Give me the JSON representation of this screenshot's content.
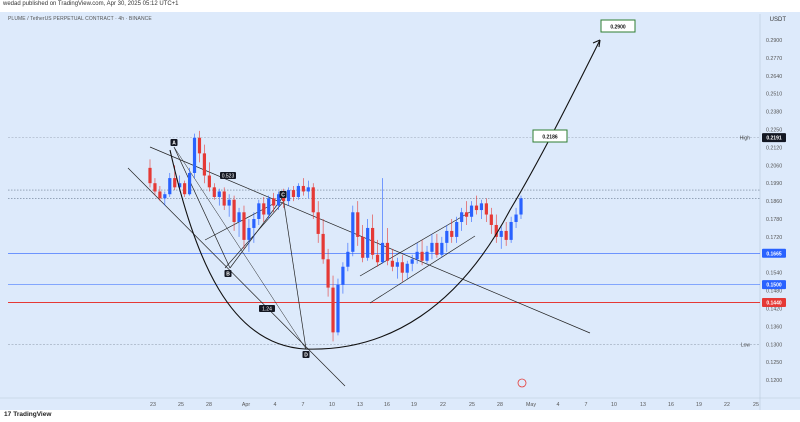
{
  "header": {
    "published_text": "wedad published on TradingView.com, Apr 30, 2025 05:12 UTC+1",
    "symbol_text": "PLUME / TetherUS PERPETUAL CONTRACT · 4h · BINANCE",
    "currency": "USDT"
  },
  "footer": {
    "brand_mark": "17",
    "brand": "TradingView"
  },
  "chart_data": {
    "type": "candlestick",
    "title": "",
    "currency": "USDT",
    "y_ticks": [
      "0.2900",
      "0.2770",
      "0.2640",
      "0.2510",
      "0.2380",
      "0.2250",
      "0.2120",
      "0.2060",
      "0.1990",
      "0.1860",
      "0.1780",
      "0.1720",
      "0.1660",
      "0.1540",
      "0.1480",
      "0.1420",
      "0.1360",
      "0.1300",
      "0.1250",
      "0.1200"
    ],
    "x_ticks": [
      "23",
      "25",
      "28",
      "Apr",
      "4",
      "7",
      "10",
      "13",
      "16",
      "19",
      "22",
      "25",
      "28",
      "May",
      "4",
      "7",
      "10",
      "13",
      "16",
      "19",
      "22",
      "25"
    ],
    "price_tags": [
      {
        "text": "0.2191",
        "color": "#131722",
        "level": 0.2191
      },
      {
        "text": "0.1665",
        "color": "#2962ff",
        "level": 0.1665
      },
      {
        "text": "0.1500",
        "color": "#2962ff",
        "level": 0.15
      },
      {
        "text": "0.1440",
        "color": "#e53935",
        "level": 0.144
      }
    ],
    "level_labels": [
      {
        "text": "High",
        "level": 0.2191
      },
      {
        "text": "Low",
        "level": 0.13
      }
    ],
    "targets": [
      {
        "text": "0.2900"
      },
      {
        "text": "0.2186"
      }
    ],
    "pattern_labels": [
      "A",
      "B",
      "C",
      "D"
    ],
    "ratio_labels": [
      "0.523",
      "1.24"
    ],
    "candles_ohlc": [
      [
        0.205,
        0.208,
        0.196,
        0.199
      ],
      [
        0.199,
        0.201,
        0.19,
        0.193
      ],
      [
        0.193,
        0.197,
        0.186,
        0.188
      ],
      [
        0.188,
        0.193,
        0.184,
        0.191
      ],
      [
        0.191,
        0.203,
        0.189,
        0.201
      ],
      [
        0.201,
        0.206,
        0.194,
        0.196
      ],
      [
        0.196,
        0.202,
        0.193,
        0.199
      ],
      [
        0.199,
        0.2,
        0.189,
        0.191
      ],
      [
        0.191,
        0.205,
        0.19,
        0.203
      ],
      [
        0.203,
        0.222,
        0.201,
        0.219
      ],
      [
        0.219,
        0.224,
        0.207,
        0.21
      ],
      [
        0.21,
        0.214,
        0.199,
        0.202
      ],
      [
        0.202,
        0.207,
        0.193,
        0.196
      ],
      [
        0.196,
        0.199,
        0.187,
        0.189
      ],
      [
        0.189,
        0.195,
        0.184,
        0.193
      ],
      [
        0.193,
        0.196,
        0.182,
        0.184
      ],
      [
        0.184,
        0.191,
        0.179,
        0.187
      ],
      [
        0.187,
        0.19,
        0.174,
        0.177
      ],
      [
        0.177,
        0.183,
        0.172,
        0.181
      ],
      [
        0.181,
        0.184,
        0.168,
        0.171
      ],
      [
        0.171,
        0.178,
        0.167,
        0.175
      ],
      [
        0.175,
        0.181,
        0.17,
        0.178
      ],
      [
        0.178,
        0.187,
        0.176,
        0.185
      ],
      [
        0.185,
        0.189,
        0.177,
        0.18
      ],
      [
        0.18,
        0.19,
        0.178,
        0.188
      ],
      [
        0.188,
        0.192,
        0.181,
        0.184
      ],
      [
        0.184,
        0.193,
        0.182,
        0.191
      ],
      [
        0.191,
        0.195,
        0.183,
        0.186
      ],
      [
        0.186,
        0.196,
        0.184,
        0.194
      ],
      [
        0.194,
        0.197,
        0.186,
        0.189
      ],
      [
        0.189,
        0.199,
        0.187,
        0.197
      ],
      [
        0.197,
        0.201,
        0.19,
        0.193
      ],
      [
        0.193,
        0.2,
        0.188,
        0.196
      ],
      [
        0.196,
        0.199,
        0.178,
        0.181
      ],
      [
        0.181,
        0.186,
        0.17,
        0.173
      ],
      [
        0.173,
        0.178,
        0.16,
        0.163
      ],
      [
        0.163,
        0.168,
        0.146,
        0.149
      ],
      [
        0.149,
        0.153,
        0.131,
        0.134
      ],
      [
        0.134,
        0.152,
        0.133,
        0.15
      ],
      [
        0.15,
        0.161,
        0.147,
        0.158
      ],
      [
        0.158,
        0.17,
        0.155,
        0.167
      ],
      [
        0.167,
        0.184,
        0.165,
        0.181
      ],
      [
        0.181,
        0.186,
        0.169,
        0.172
      ],
      [
        0.172,
        0.176,
        0.161,
        0.164
      ],
      [
        0.164,
        0.178,
        0.162,
        0.175
      ],
      [
        0.175,
        0.18,
        0.163,
        0.166
      ],
      [
        0.166,
        0.171,
        0.158,
        0.161
      ],
      [
        0.161,
        0.201,
        0.16,
        0.17
      ],
      [
        0.17,
        0.175,
        0.159,
        0.162
      ],
      [
        0.162,
        0.168,
        0.155,
        0.158
      ],
      [
        0.158,
        0.164,
        0.152,
        0.161
      ],
      [
        0.161,
        0.166,
        0.151,
        0.154
      ],
      [
        0.154,
        0.162,
        0.152,
        0.16
      ],
      [
        0.16,
        0.166,
        0.155,
        0.163
      ],
      [
        0.163,
        0.17,
        0.16,
        0.167
      ],
      [
        0.167,
        0.171,
        0.159,
        0.162
      ],
      [
        0.162,
        0.169,
        0.16,
        0.167
      ],
      [
        0.167,
        0.173,
        0.163,
        0.17
      ],
      [
        0.17,
        0.173,
        0.164,
        0.166
      ],
      [
        0.166,
        0.172,
        0.164,
        0.17
      ],
      [
        0.17,
        0.176,
        0.167,
        0.174
      ],
      [
        0.174,
        0.178,
        0.17,
        0.172
      ],
      [
        0.172,
        0.179,
        0.17,
        0.177
      ],
      [
        0.177,
        0.183,
        0.174,
        0.181
      ],
      [
        0.181,
        0.186,
        0.176,
        0.179
      ],
      [
        0.179,
        0.186,
        0.177,
        0.184
      ],
      [
        0.184,
        0.19,
        0.18,
        0.182
      ],
      [
        0.182,
        0.187,
        0.178,
        0.185
      ],
      [
        0.185,
        0.188,
        0.177,
        0.18
      ],
      [
        0.18,
        0.183,
        0.173,
        0.176
      ],
      [
        0.176,
        0.18,
        0.17,
        0.172
      ],
      [
        0.172,
        0.176,
        0.168,
        0.174
      ],
      [
        0.174,
        0.177,
        0.169,
        0.171
      ],
      [
        0.171,
        0.179,
        0.17,
        0.177
      ],
      [
        0.177,
        0.183,
        0.175,
        0.18
      ],
      [
        0.18,
        0.19,
        0.178,
        0.188
      ]
    ]
  }
}
